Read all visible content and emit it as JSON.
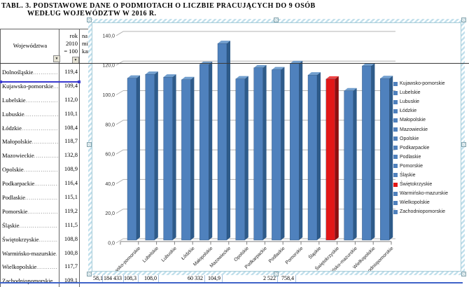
{
  "title": {
    "line1": "TABL. 3. PODSTAWOWE DANE O PODMIOTACH O LICZBIE PRACUJĄCYCH DO 9 OSÓB",
    "line2": "WEDŁUG WOJEWÓDZTW W 2016 R."
  },
  "table": {
    "header": {
      "col1": "Województwa",
      "col2_lines": [
        "rok",
        "2010",
        "= 100"
      ],
      "col3_fragments": [
        "na 1",
        "mie",
        "kan"
      ],
      "filter_icon": "▼"
    },
    "rows": [
      {
        "name": "Dolnośląskie",
        "value": "119,4"
      },
      {
        "name": "Kujawsko-pomorskie",
        "value": "109,4"
      },
      {
        "name": "Lubelskie",
        "value": "112,0"
      },
      {
        "name": "Lubuskie",
        "value": "110,1"
      },
      {
        "name": "Łódzkie",
        "value": "108,4"
      },
      {
        "name": "Małopolskie",
        "value": "118,7"
      },
      {
        "name": "Mazowieckie",
        "value": "132,8"
      },
      {
        "name": "Opolskie",
        "value": "108,9"
      },
      {
        "name": "Podkarpackie",
        "value": "116,4"
      },
      {
        "name": "Podlaskie",
        "value": "115,1"
      },
      {
        "name": "Pomorskie",
        "value": "119,2"
      },
      {
        "name": "Śląskie",
        "value": "111,5"
      },
      {
        "name": "Świętokrzyskie",
        "value": "108,8"
      },
      {
        "name": "Warmińsko-mazurskie",
        "value": "100,8"
      },
      {
        "name": "Wielkopolskie",
        "value": "117,7"
      },
      {
        "name": "Zachodniopomorskie",
        "value": "109,1"
      }
    ]
  },
  "partial_bottom_row": {
    "values": [
      "58,1",
      "184 433",
      "108,3",
      "108,0",
      "60 332",
      "104,9",
      "2 522",
      "758,4"
    ]
  },
  "chart_data": {
    "type": "bar",
    "style": "3d-column",
    "title": "",
    "xlabel": "",
    "ylabel": "",
    "categories": [
      "Kujawsko-pomorskie",
      "Lubelskie",
      "Lubuskie",
      "Łódzkie",
      "Małopolskie",
      "Mazowieckie",
      "Opolskie",
      "Podkarpackie",
      "Podlaskie",
      "Pomorskie",
      "Śląskie",
      "Świętokrzyskie",
      "Warmińsko-mazurskie",
      "Wielkopolskie",
      "Zachodniopomorskie"
    ],
    "values": [
      109.4,
      112.0,
      110.1,
      108.4,
      118.7,
      132.8,
      108.9,
      116.4,
      115.1,
      119.2,
      111.5,
      108.8,
      100.8,
      117.7,
      109.1
    ],
    "highlight_category": "Świętokrzyskie",
    "ylim": [
      0,
      140
    ],
    "ytick_step": 20,
    "ytick_labels": [
      "0,0",
      "20,0",
      "40,0",
      "60,0",
      "80,0",
      "100,0",
      "120,0",
      "140,0"
    ],
    "grid": true,
    "legend_position": "right",
    "colors": {
      "bar_front": "#4f81bd",
      "bar_side": "#2e5b8a",
      "bar_top": "#729fce",
      "highlight_front": "#e21717",
      "highlight_side": "#8e0e0e",
      "highlight_top": "#ef4545",
      "gridline": "#b3b3b3",
      "axis": "#808080"
    }
  }
}
